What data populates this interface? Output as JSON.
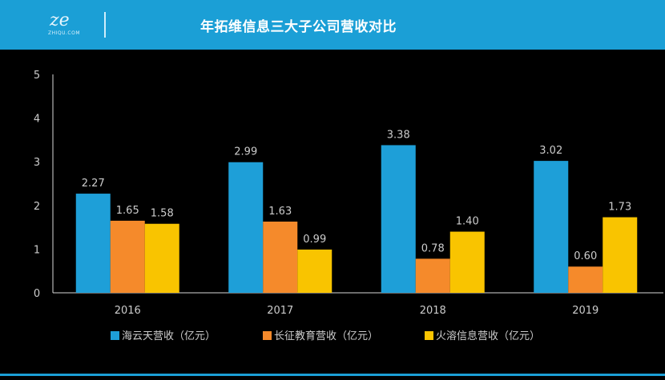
{
  "header": {
    "logo_text": "ze",
    "logo_subtext": "ZHIQU.COM",
    "title": "年拓维信息三大子公司营收对比"
  },
  "colors": {
    "header_bg": "#1b9fd6",
    "series": [
      "#1e9fd8",
      "#f58a2b",
      "#f9c400"
    ],
    "text": "#cccccc",
    "axis": "#d9d9d9"
  },
  "chart_data": {
    "type": "bar",
    "categories": [
      "2016",
      "2017",
      "2018",
      "2019"
    ],
    "series": [
      {
        "name": "海云天营收（亿元）",
        "values": [
          2.27,
          2.99,
          3.38,
          3.02
        ]
      },
      {
        "name": "长征教育营收（亿元）",
        "values": [
          1.65,
          1.63,
          0.78,
          0.6
        ]
      },
      {
        "name": "火溶信息营收（亿元）",
        "values": [
          1.58,
          0.99,
          1.4,
          1.73
        ]
      }
    ],
    "value_labels": [
      [
        "2.27",
        "2.99",
        "3.38",
        "3.02"
      ],
      [
        "1.65",
        "1.63",
        "0.78",
        "0.60"
      ],
      [
        "1.58",
        "0.99",
        "1.40",
        "1.73"
      ]
    ],
    "ylim": [
      0,
      5
    ],
    "yticks": [
      "0",
      "1",
      "2",
      "3",
      "4",
      "5"
    ],
    "grid": false,
    "legend_position": "bottom"
  }
}
